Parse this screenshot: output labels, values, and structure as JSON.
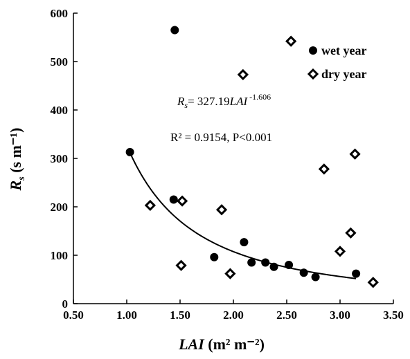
{
  "chart_data": {
    "type": "scatter",
    "xlabel_var": "LAI",
    "xlabel_unit": " (m² m⁻²)",
    "ylabel_var": "R",
    "ylabel_sub": "s",
    "ylabel_unit": " (s m⁻¹)",
    "xlim": [
      0.5,
      3.5
    ],
    "ylim": [
      0,
      600
    ],
    "x_ticks": [
      "0.50",
      "1.00",
      "1.50",
      "2.00",
      "2.50",
      "3.00",
      "3.50"
    ],
    "y_ticks": [
      "0",
      "100",
      "200",
      "300",
      "400",
      "500",
      "600"
    ],
    "legend_position": "top-right",
    "series": [
      {
        "name": "wet year",
        "marker": "filled-circle",
        "color": "#000000",
        "points": [
          [
            1.03,
            313
          ],
          [
            1.45,
            565
          ],
          [
            1.44,
            215
          ],
          [
            1.82,
            96
          ],
          [
            2.1,
            127
          ],
          [
            2.17,
            85
          ],
          [
            2.3,
            85
          ],
          [
            2.38,
            76
          ],
          [
            2.52,
            80
          ],
          [
            2.66,
            64
          ],
          [
            2.77,
            55
          ],
          [
            3.15,
            62
          ]
        ]
      },
      {
        "name": "dry year",
        "marker": "open-diamond",
        "color": "#000000",
        "points": [
          [
            1.22,
            203
          ],
          [
            1.51,
            79
          ],
          [
            1.52,
            212
          ],
          [
            1.89,
            194
          ],
          [
            1.97,
            62
          ],
          [
            2.09,
            473
          ],
          [
            2.54,
            542
          ],
          [
            2.85,
            278
          ],
          [
            3.0,
            108
          ],
          [
            3.1,
            146
          ],
          [
            3.14,
            309
          ],
          [
            3.31,
            44
          ]
        ]
      }
    ],
    "fit": {
      "a": 327.19,
      "b": -1.606,
      "x_range": [
        1.03,
        3.15
      ],
      "eq_prefix_var": "R",
      "eq_prefix_sub": "s",
      "eq_mid": "= 327.19",
      "eq_var": "LAI",
      "eq_exp": " -1.606",
      "stats": "R² = 0.9154, P<0.001"
    },
    "grid": false
  }
}
